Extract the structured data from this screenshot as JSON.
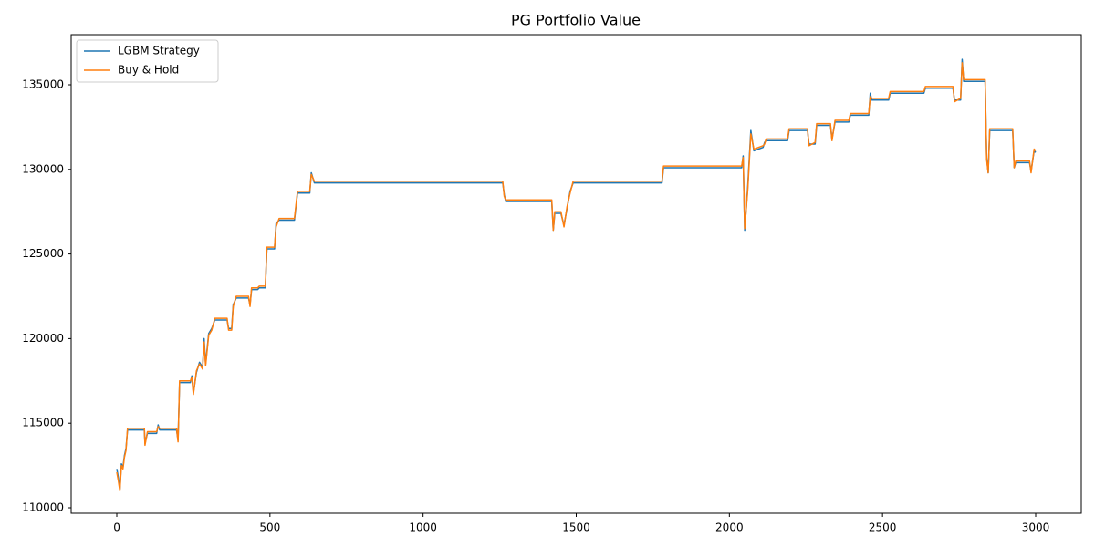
{
  "chart_data": {
    "type": "line",
    "title": "PG Portfolio Value",
    "x": [
      0,
      5,
      10,
      15,
      20,
      25,
      30,
      35,
      90,
      92,
      100,
      130,
      135,
      140,
      195,
      200,
      205,
      240,
      245,
      250,
      260,
      270,
      280,
      285,
      290,
      300,
      310,
      320,
      360,
      365,
      375,
      380,
      390,
      430,
      435,
      440,
      460,
      465,
      485,
      490,
      515,
      520,
      530,
      580,
      590,
      630,
      635,
      645,
      660,
      1260,
      1265,
      1270,
      1420,
      1425,
      1430,
      1450,
      1460,
      1470,
      1480,
      1490,
      1780,
      1785,
      2040,
      2045,
      2050,
      2060,
      2070,
      2080,
      2110,
      2115,
      2120,
      2190,
      2195,
      2255,
      2260,
      2280,
      2285,
      2330,
      2335,
      2345,
      2390,
      2395,
      2455,
      2460,
      2465,
      2520,
      2525,
      2635,
      2640,
      2730,
      2735,
      2755,
      2760,
      2765,
      2835,
      2840,
      2845,
      2850,
      2925,
      2930,
      2935,
      2980,
      2985,
      2995,
      3000
    ],
    "series": [
      {
        "name": "LGBM Strategy",
        "color": "#1f77b4",
        "values": [
          112300,
          111800,
          111100,
          112600,
          112400,
          113100,
          113500,
          114600,
          114600,
          113800,
          114400,
          114400,
          114900,
          114600,
          114600,
          114000,
          117400,
          117400,
          117800,
          116800,
          118000,
          118600,
          118300,
          120000,
          118500,
          120300,
          120600,
          121100,
          121100,
          120600,
          120600,
          122000,
          122400,
          122400,
          122000,
          122900,
          122900,
          123000,
          123000,
          125300,
          125300,
          126800,
          127000,
          127000,
          128600,
          128600,
          129800,
          129200,
          129200,
          129200,
          128500,
          128100,
          128100,
          126400,
          127400,
          127400,
          126700,
          127700,
          128700,
          129200,
          129200,
          130100,
          130100,
          130800,
          126400,
          129000,
          132300,
          131100,
          131300,
          131600,
          131700,
          131700,
          132300,
          132300,
          131500,
          131500,
          132600,
          132600,
          131800,
          132800,
          132800,
          133200,
          133200,
          134500,
          134100,
          134100,
          134500,
          134500,
          134800,
          134800,
          134100,
          134100,
          136500,
          135200,
          135200,
          130700,
          129800,
          132300,
          132300,
          130100,
          130400,
          130400,
          129900,
          131100,
          131000
        ]
      },
      {
        "name": "Buy & Hold",
        "color": "#ff7f0e",
        "values": [
          112100,
          111600,
          111000,
          112500,
          112300,
          113000,
          113400,
          114700,
          114700,
          113700,
          114500,
          114500,
          114800,
          114700,
          114700,
          113900,
          117500,
          117500,
          117700,
          116700,
          118100,
          118500,
          118200,
          119800,
          118400,
          120200,
          120500,
          121200,
          121200,
          120500,
          120500,
          121900,
          122500,
          122500,
          121900,
          123000,
          123000,
          123100,
          123100,
          125400,
          125400,
          126600,
          127100,
          127100,
          128700,
          128700,
          129700,
          129300,
          129300,
          129300,
          128400,
          128200,
          128200,
          126400,
          127500,
          127500,
          126600,
          127800,
          128600,
          129300,
          129300,
          130200,
          130200,
          130700,
          126500,
          128800,
          132100,
          131200,
          131400,
          131500,
          131800,
          131800,
          132400,
          132400,
          131400,
          131600,
          132700,
          132700,
          131700,
          132900,
          132900,
          133300,
          133300,
          134300,
          134200,
          134200,
          134600,
          134600,
          134900,
          134900,
          134000,
          134200,
          136300,
          135300,
          135300,
          130600,
          129800,
          132400,
          132400,
          130100,
          130500,
          130500,
          129800,
          131200,
          131100
        ]
      }
    ],
    "xlim": [
      -149,
      3149
    ],
    "ylim": [
      109677,
      137963
    ],
    "xticks": [
      0,
      500,
      1000,
      1500,
      2000,
      2500,
      3000
    ],
    "yticks": [
      110000,
      115000,
      120000,
      125000,
      130000,
      135000
    ],
    "legend": "upper left"
  }
}
